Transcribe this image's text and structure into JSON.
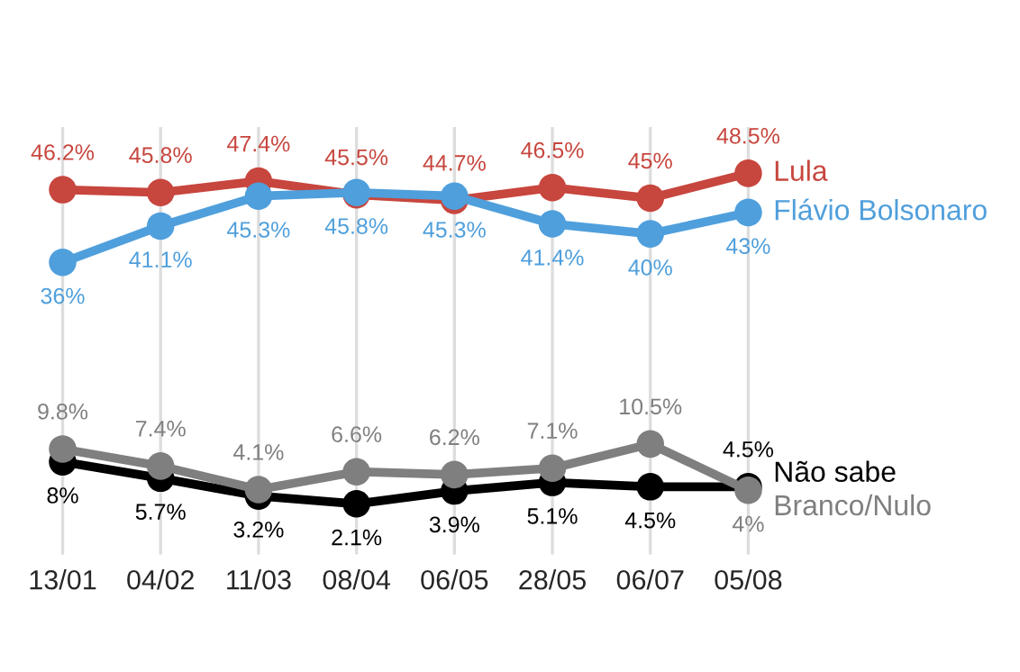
{
  "chart_data": {
    "type": "line",
    "categories": [
      "13/01",
      "04/02",
      "11/03",
      "08/04",
      "06/05",
      "28/05",
      "06/07",
      "05/08"
    ],
    "ylim": [
      -5,
      55
    ],
    "tick_labels": "x",
    "grid": "x",
    "marker": "circle",
    "line_style": "solid",
    "series": [
      {
        "name": "Lula",
        "color": "#c7463e",
        "values": [
          46.2,
          45.8,
          47.4,
          45.5,
          44.7,
          46.5,
          45,
          48.5
        ],
        "value_labels": [
          "46.2%",
          "45.8%",
          "47.4%",
          "45.5%",
          "44.7%",
          "46.5%",
          "45%",
          "48.5%"
        ]
      },
      {
        "name": "Flávio Bolsonaro",
        "color": "#4f9fdc",
        "values": [
          36,
          41.1,
          45.3,
          45.8,
          45.3,
          41.4,
          40,
          43
        ],
        "value_labels": [
          "36%",
          "41.1%",
          "45.3%",
          "45.8%",
          "45.3%",
          "41.4%",
          "40%",
          "43%"
        ]
      },
      {
        "name": "Não sabe",
        "color": "#000000",
        "values": [
          8,
          5.7,
          3.2,
          2.1,
          3.9,
          5.1,
          4.5,
          4.5
        ],
        "value_labels": [
          "8%",
          "5.7%",
          "3.2%",
          "2.1%",
          "3.9%",
          "5.1%",
          "4.5%",
          "4.5%"
        ]
      },
      {
        "name": "Branco/Nulo",
        "color": "#7f7f7f",
        "values": [
          9.8,
          7.4,
          4.1,
          6.6,
          6.2,
          7.1,
          10.5,
          4
        ],
        "value_labels": [
          "9.8%",
          "7.4%",
          "4.1%",
          "6.6%",
          "6.2%",
          "7.1%",
          "10.5%",
          "4%"
        ]
      }
    ]
  }
}
